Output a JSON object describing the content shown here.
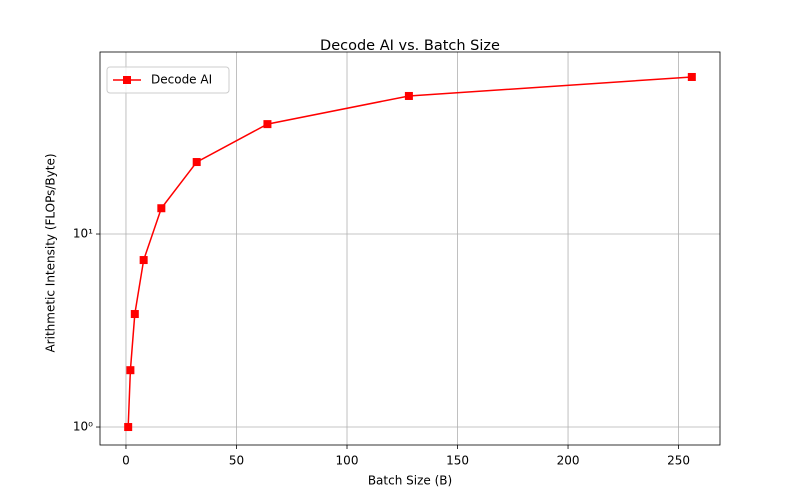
{
  "chart_data": {
    "type": "line",
    "title": "Decode AI vs. Batch Size",
    "x_label": "Batch Size (B)",
    "y_label": "Arithmetic Intensity (FLOPs/Byte)",
    "x": [
      1,
      2,
      4,
      8,
      16,
      32,
      64,
      128,
      256
    ],
    "series": [
      {
        "name": "Decode AI",
        "color": "#ff0000",
        "values": [
          1.0,
          1.97,
          3.85,
          7.33,
          13.6,
          23.6,
          37.1,
          51.9,
          65.1
        ]
      }
    ],
    "xlim": [
      -11.75,
      268.75
    ],
    "xticks": [
      0,
      50,
      100,
      150,
      200,
      250
    ],
    "ylim": [
      0.807,
      87.7
    ],
    "yticks": [
      {
        "value": 1,
        "label": "10⁰"
      },
      {
        "value": 10,
        "label": "10¹"
      }
    ],
    "y_scale": "log",
    "grid": true,
    "legend": "upper left",
    "marker": "square"
  }
}
